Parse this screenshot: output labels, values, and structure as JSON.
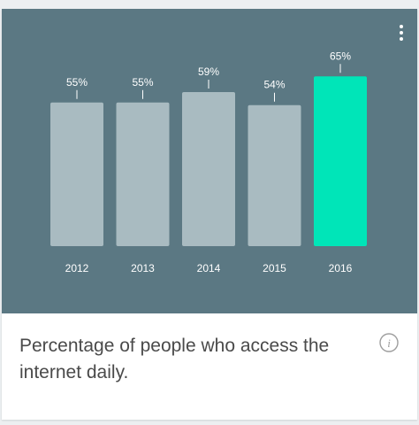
{
  "card": {
    "caption": "Percentage of people who access the internet daily.",
    "menu_icon": "more-vert-icon",
    "info_icon": "info-icon"
  },
  "chart_data": {
    "type": "bar",
    "categories": [
      "2012",
      "2013",
      "2014",
      "2015",
      "2016"
    ],
    "values": [
      55,
      55,
      59,
      54,
      65
    ],
    "value_labels": [
      "55%",
      "55%",
      "59%",
      "54%",
      "65%"
    ],
    "highlight_index": 4,
    "ylim": [
      0,
      65
    ],
    "grid": false,
    "title": "",
    "xlabel": "",
    "ylabel": "",
    "colors": {
      "background": "#5b7883",
      "bar": "#a9bbc1",
      "highlight": "#00e5b8",
      "text": "#ffffff"
    }
  }
}
